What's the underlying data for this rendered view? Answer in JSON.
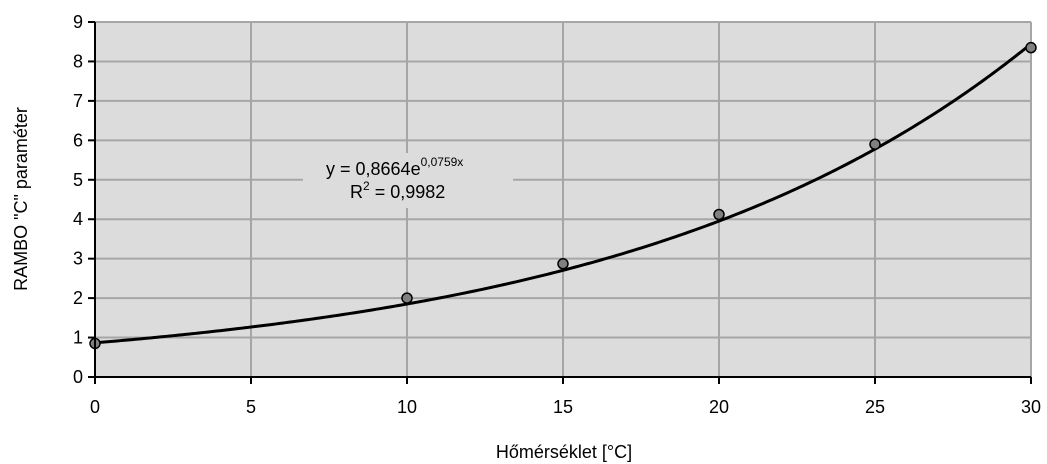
{
  "chart_data": {
    "type": "scatter",
    "xlabel": "Hőmérséklet [°C]",
    "ylabel": "RAMBO \"C\" paraméter",
    "xlim": [
      0,
      30
    ],
    "ylim": [
      0,
      9
    ],
    "xticks": [
      0,
      5,
      10,
      15,
      20,
      25,
      30
    ],
    "yticks": [
      0,
      1,
      2,
      3,
      4,
      5,
      6,
      7,
      8,
      9
    ],
    "grid": true,
    "plot_background": "#dcdcdc",
    "grid_color": "#a6a6a6",
    "marker_color": "#808080",
    "line_color": "#000000",
    "points": {
      "x": [
        0,
        10,
        15,
        20,
        25,
        30
      ],
      "y": [
        0.85,
        2.0,
        2.87,
        4.12,
        5.9,
        8.35
      ]
    },
    "trendline": {
      "type": "exponential",
      "a": 0.8664,
      "b": 0.0759
    },
    "annotation": {
      "eq_base": "y = 0,8664e",
      "eq_exp": "0,0759x",
      "r2_base": "R",
      "r2_sup": "2",
      "r2_value": " = 0,9982"
    }
  }
}
